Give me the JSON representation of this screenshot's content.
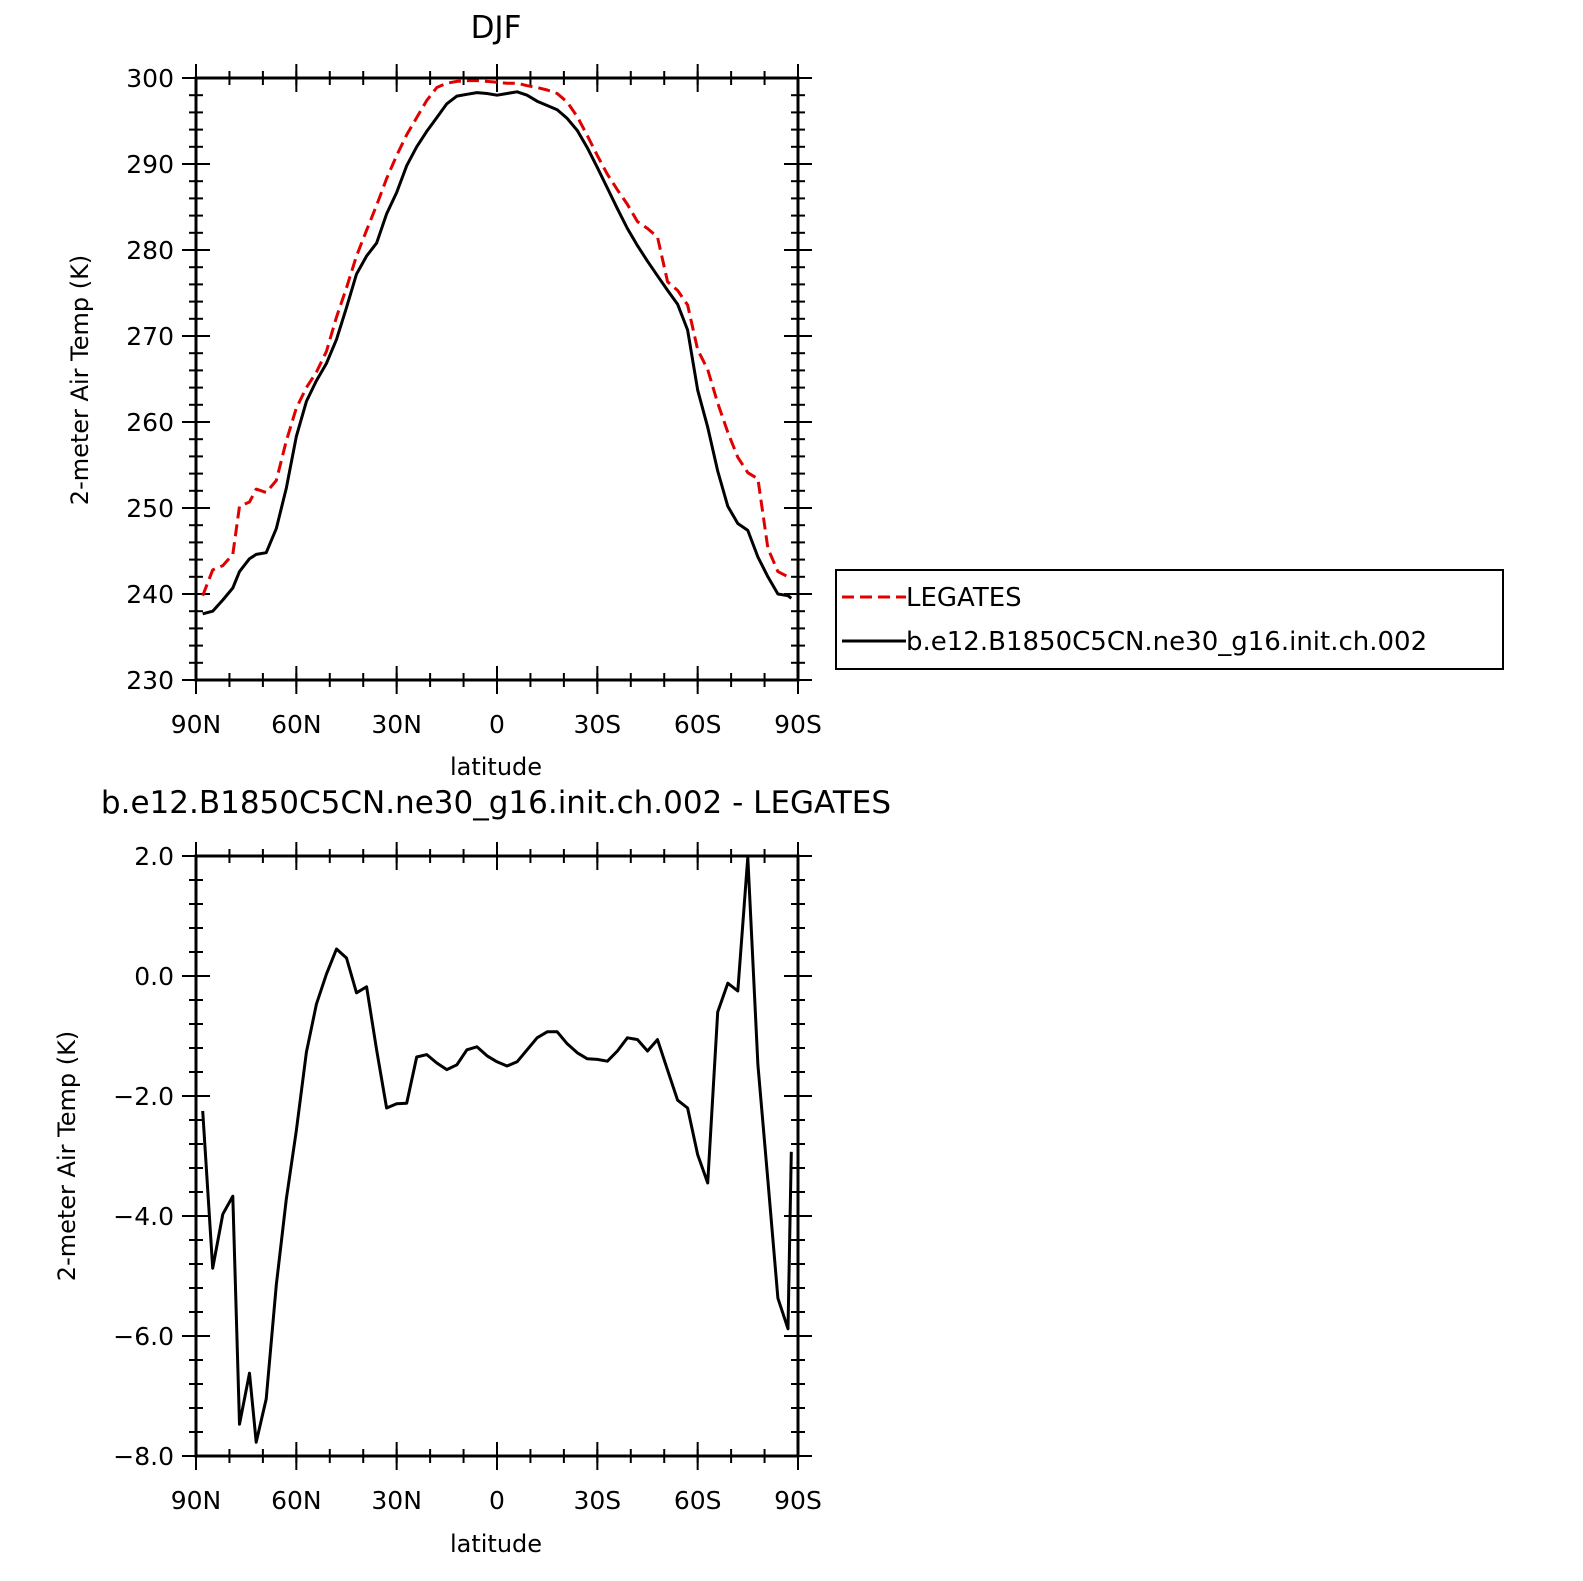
{
  "chart_data": [
    {
      "type": "line",
      "title": "DJF",
      "xlabel": "latitude",
      "ylabel": "2-meter Air Temp (K)",
      "ylim": [
        230,
        300
      ],
      "xlim": [
        90,
        -90
      ],
      "yticks": [
        230,
        240,
        250,
        260,
        270,
        280,
        290,
        300
      ],
      "yticks_labels": [
        "230",
        "240",
        "250",
        "260",
        "270",
        "280",
        "290",
        "300"
      ],
      "xticks": [
        90,
        60,
        30,
        0,
        -30,
        -60,
        -90
      ],
      "xticks_labels": [
        "90N",
        "60N",
        "30N",
        "0",
        "30S",
        "60S",
        "90S"
      ],
      "legend": {
        "placement": "right"
      },
      "series": [
        {
          "name": "LEGATES",
          "color": "#e00000",
          "dash": "dashed",
          "x": [
            88,
            85,
            82,
            79,
            77,
            74,
            72,
            69,
            66,
            63,
            60,
            57,
            54,
            51,
            48,
            45,
            42,
            39,
            36,
            33,
            30,
            27,
            24,
            21,
            18,
            15,
            12,
            9,
            6,
            3,
            0,
            -3,
            -6,
            -9,
            -12,
            -15,
            -18,
            -21,
            -24,
            -27,
            -30,
            -33,
            -36,
            -39,
            -42,
            -45,
            -48,
            -51,
            -54,
            -57,
            -60,
            -63,
            -66,
            -69,
            -72,
            -75,
            -78,
            -81,
            -84,
            -87,
            -88
          ],
          "y": [
            239.8,
            242.8,
            243.3,
            244.6,
            250.2,
            250.7,
            252.2,
            251.8,
            253.2,
            257.8,
            261.6,
            264.0,
            265.8,
            268.2,
            272.2,
            275.6,
            279.3,
            282.3,
            285.2,
            288.3,
            291.0,
            293.4,
            295.4,
            297.4,
            298.9,
            299.4,
            299.6,
            299.7,
            299.7,
            299.6,
            299.5,
            299.4,
            299.4,
            299.1,
            298.9,
            298.6,
            298.2,
            297.2,
            295.5,
            293.3,
            291.0,
            288.8,
            287.0,
            285.3,
            283.3,
            282.5,
            281.5,
            276.3,
            275.3,
            273.6,
            268.4,
            266.1,
            262.2,
            258.8,
            255.9,
            254.1,
            253.4,
            245.3,
            242.6,
            242.0,
            242.0
          ]
        },
        {
          "name": "b.e12.B1850C5CN.ne30_g16.init.ch.002",
          "color": "#000000",
          "dash": "solid",
          "x": [
            88,
            85,
            82,
            79,
            77,
            74,
            72,
            69,
            66,
            63,
            60,
            57,
            54,
            51,
            48,
            45,
            42,
            39,
            36,
            33,
            30,
            27,
            24,
            21,
            18,
            15,
            12,
            9,
            6,
            3,
            0,
            -3,
            -6,
            -9,
            -12,
            -15,
            -18,
            -21,
            -24,
            -27,
            -30,
            -33,
            -36,
            -39,
            -42,
            -45,
            -48,
            -51,
            -54,
            -57,
            -60,
            -63,
            -66,
            -69,
            -72,
            -75,
            -78,
            -81,
            -84,
            -87,
            -88
          ],
          "y": [
            237.7,
            238.0,
            239.3,
            240.7,
            242.6,
            244.1,
            244.6,
            244.8,
            247.6,
            252.3,
            258.3,
            262.4,
            264.8,
            266.8,
            269.6,
            273.3,
            277.2,
            279.3,
            280.8,
            284.2,
            286.7,
            289.8,
            292.0,
            293.8,
            295.4,
            297.0,
            297.9,
            298.1,
            298.3,
            298.2,
            298.0,
            298.2,
            298.4,
            298.0,
            297.3,
            296.8,
            296.3,
            295.3,
            293.9,
            291.9,
            289.6,
            287.2,
            284.8,
            282.5,
            280.5,
            278.7,
            277.0,
            275.3,
            273.7,
            270.7,
            263.7,
            259.4,
            254.3,
            250.2,
            248.2,
            247.4,
            244.3,
            242.0,
            240.0,
            239.8,
            239.5
          ]
        }
      ]
    },
    {
      "type": "line",
      "title": "b.e12.B1850C5CN.ne30_g16.init.ch.002 - LEGATES",
      "xlabel": "latitude",
      "ylabel": "2-meter Air Temp (K)",
      "ylim": [
        -8.0,
        2.0
      ],
      "xlim": [
        90,
        -90
      ],
      "yticks": [
        -8,
        -6,
        -4,
        -2,
        0,
        2
      ],
      "yticks_labels": [
        "−8.0",
        "−6.0",
        "−4.0",
        "−2.0",
        "0.0",
        "2.0"
      ],
      "xticks": [
        90,
        60,
        30,
        0,
        -30,
        -60,
        -90
      ],
      "xticks_labels": [
        "90N",
        "60N",
        "30N",
        "0",
        "30S",
        "60S",
        "90S"
      ],
      "series": [
        {
          "color": "#000000",
          "dash": "solid",
          "x": [
            88,
            85,
            82,
            79,
            77,
            74,
            72,
            69,
            66,
            63,
            60,
            57,
            54,
            51,
            48,
            45,
            42,
            39,
            36,
            33,
            30,
            27,
            24,
            21,
            18,
            15,
            12,
            9,
            6,
            3,
            0,
            -3,
            -6,
            -9,
            -12,
            -15,
            -18,
            -21,
            -24,
            -27,
            -30,
            -33,
            -36,
            -39,
            -42,
            -45,
            -48,
            -51,
            -54,
            -57,
            -60,
            -63,
            -66,
            -69,
            -72,
            -75,
            -78,
            -81,
            -84,
            -87,
            -88
          ],
          "y": [
            -2.25,
            -4.87,
            -3.97,
            -3.67,
            -7.47,
            -6.62,
            -7.77,
            -7.05,
            -5.15,
            -3.72,
            -2.58,
            -1.27,
            -0.47,
            0.03,
            0.45,
            0.3,
            -0.28,
            -0.18,
            -1.23,
            -2.2,
            -2.13,
            -2.12,
            -1.35,
            -1.31,
            -1.45,
            -1.56,
            -1.48,
            -1.23,
            -1.18,
            -1.33,
            -1.43,
            -1.5,
            -1.43,
            -1.23,
            -1.03,
            -0.93,
            -0.93,
            -1.13,
            -1.28,
            -1.38,
            -1.39,
            -1.42,
            -1.25,
            -1.03,
            -1.06,
            -1.25,
            -1.06,
            -1.57,
            -2.07,
            -2.2,
            -2.98,
            -3.45,
            -0.6,
            -0.12,
            -0.25,
            1.98,
            -1.48,
            -3.41,
            -5.37,
            -5.88,
            -2.93
          ]
        }
      ]
    }
  ]
}
